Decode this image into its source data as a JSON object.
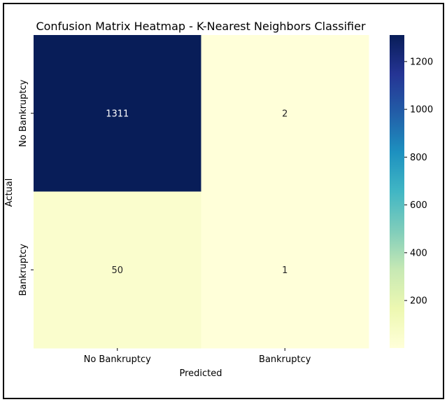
{
  "chart_data": {
    "type": "heatmap",
    "title": "Confusion Matrix Heatmap - K-Nearest Neighbors Classifier",
    "xlabel": "Predicted",
    "ylabel": "Actual",
    "x_categories": [
      "No Bankruptcy",
      "Bankruptcy"
    ],
    "y_categories": [
      "No Bankruptcy",
      "Bankruptcy"
    ],
    "values": [
      [
        1311,
        2
      ],
      [
        50,
        1
      ]
    ],
    "colormap": "YlGnBu",
    "colorbar": {
      "min": 1,
      "max": 1311,
      "ticks": [
        200,
        400,
        600,
        800,
        1000,
        1200
      ],
      "tick_labels": [
        "200",
        "400",
        "600",
        "800",
        "1000",
        "1200"
      ]
    },
    "annotation_colors": {
      "light": "#ffffff",
      "dark": "#262626"
    }
  }
}
